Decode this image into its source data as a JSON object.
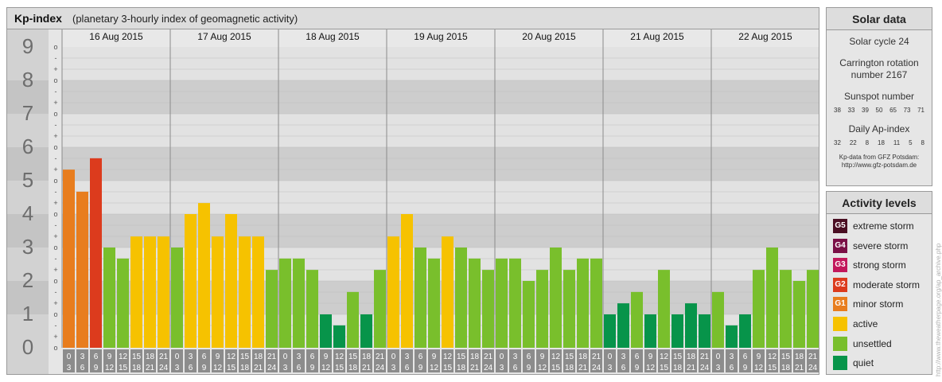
{
  "header": {
    "title": "Kp-index",
    "subtitle": "(planetary 3-hourly index of geomagnetic activity)"
  },
  "chart_data": {
    "type": "bar",
    "ylim": [
      0,
      9
    ],
    "y_ticks": [
      "0",
      "1",
      "2",
      "3",
      "4",
      "5",
      "6",
      "7",
      "8",
      "9"
    ],
    "subdivisions": [
      "o",
      "+",
      "-"
    ],
    "days": [
      "16 Aug 2015",
      "17 Aug 2015",
      "18 Aug 2015",
      "19 Aug 2015",
      "20 Aug 2015",
      "21 Aug 2015",
      "22 Aug 2015"
    ],
    "interval_start": [
      "0",
      "3",
      "6",
      "9",
      "12",
      "15",
      "18",
      "21"
    ],
    "interval_end": [
      "3",
      "6",
      "9",
      "12",
      "15",
      "18",
      "21",
      "24"
    ],
    "values": [
      5.33,
      4.67,
      5.67,
      3.0,
      2.67,
      3.33,
      3.33,
      3.33,
      3.0,
      4.0,
      4.33,
      3.33,
      4.0,
      3.33,
      3.33,
      2.33,
      2.67,
      2.67,
      2.33,
      1.0,
      0.67,
      1.67,
      1.0,
      2.33,
      3.33,
      4.0,
      3.0,
      2.67,
      3.33,
      3.0,
      2.67,
      2.33,
      2.67,
      2.67,
      2.0,
      2.33,
      3.0,
      2.33,
      2.67,
      2.67,
      1.0,
      1.33,
      1.67,
      1.0,
      2.33,
      1.0,
      1.33,
      1.0,
      1.67,
      0.67,
      1.0,
      2.33,
      3.0,
      2.33,
      2.0,
      2.33
    ]
  },
  "solar": {
    "title": "Solar data",
    "cycle": "Solar cycle 24",
    "carrington_line1": "Carrington rotation",
    "carrington_line2": "number 2167",
    "sunspot_title": "Sunspot number",
    "sunspot_numbers": [
      "38",
      "33",
      "39",
      "50",
      "65",
      "73",
      "71"
    ],
    "ap_title": "Daily Ap-index",
    "ap_numbers": [
      "32",
      "22",
      "8",
      "18",
      "11",
      "5",
      "8"
    ],
    "source_line1": "Kp-data from GFZ Potsdam:",
    "source_line2": "http://www.gfz-potsdam.de"
  },
  "activity": {
    "title": "Activity levels",
    "levels": [
      {
        "code": "G5",
        "label": "extreme storm",
        "color": "#4a0f23"
      },
      {
        "code": "G4",
        "label": "severe storm",
        "color": "#7a1046"
      },
      {
        "code": "G3",
        "label": "strong storm",
        "color": "#c2185b"
      },
      {
        "code": "G2",
        "label": "moderate storm",
        "color": "#dc3b1d"
      },
      {
        "code": "G1",
        "label": "minor storm",
        "color": "#e87d1e"
      },
      {
        "code": "",
        "label": "active",
        "color": "#f6c200"
      },
      {
        "code": "",
        "label": "unsettled",
        "color": "#79bf2c"
      },
      {
        "code": "",
        "label": "quiet",
        "color": "#07944a"
      }
    ]
  },
  "credit": "http://www.theweatherpage.org/ap_archive.php"
}
